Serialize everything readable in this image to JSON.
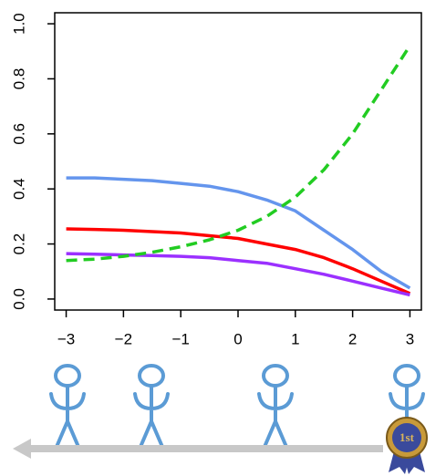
{
  "chart_data": {
    "type": "line",
    "x": [
      -3,
      -2.5,
      -2,
      -1.5,
      -1,
      -0.5,
      0,
      0.5,
      1,
      1.5,
      2,
      2.5,
      3
    ],
    "series": [
      {
        "color": "#6495ed",
        "values": [
          0.44,
          0.44,
          0.435,
          0.43,
          0.42,
          0.41,
          0.39,
          0.36,
          0.32,
          0.25,
          0.18,
          0.1,
          0.04
        ]
      },
      {
        "color": "#ff0000",
        "values": [
          0.255,
          0.253,
          0.25,
          0.245,
          0.24,
          0.23,
          0.22,
          0.2,
          0.18,
          0.15,
          0.11,
          0.065,
          0.02
        ]
      },
      {
        "color": "#9b30ff",
        "values": [
          0.165,
          0.163,
          0.16,
          0.158,
          0.155,
          0.15,
          0.14,
          0.13,
          0.11,
          0.09,
          0.065,
          0.04,
          0.015
        ]
      },
      {
        "color": "#22cc22",
        "dashed": true,
        "values": [
          0.14,
          0.145,
          0.155,
          0.17,
          0.19,
          0.215,
          0.25,
          0.3,
          0.37,
          0.47,
          0.6,
          0.76,
          0.92
        ]
      }
    ],
    "xlim": [
      -3.2,
      3.2
    ],
    "ylim": [
      -0.04,
      1.04
    ],
    "xticks": [
      {
        "value": -3,
        "label": "−3"
      },
      {
        "value": -2,
        "label": "−2"
      },
      {
        "value": -1,
        "label": "−1"
      },
      0,
      1,
      2,
      3
    ],
    "yticks": [
      {
        "value": 0,
        "label": "0.0"
      },
      0.2,
      0.4,
      0.6,
      0.8,
      {
        "value": 1,
        "label": "1.0"
      }
    ]
  },
  "badge_text": "1st"
}
